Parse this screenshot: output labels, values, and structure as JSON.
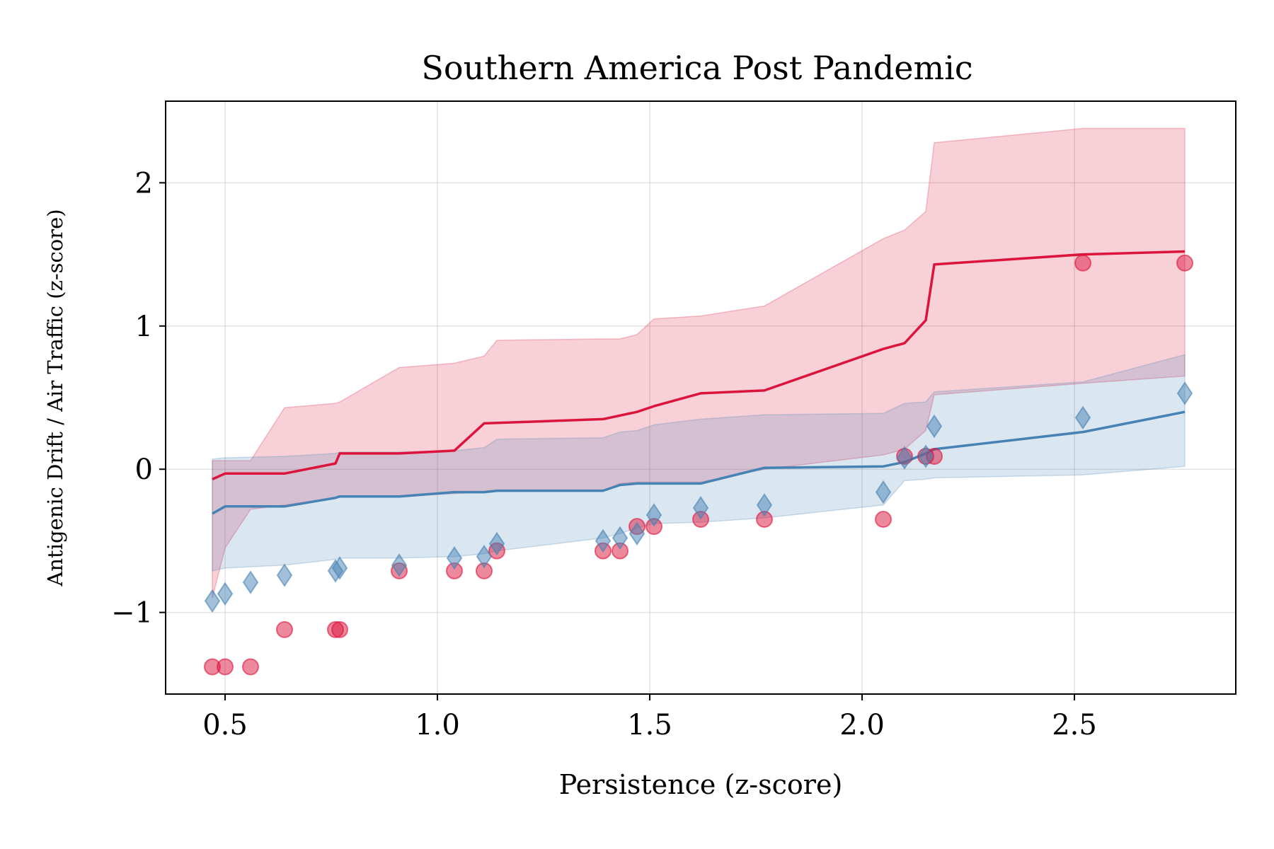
{
  "chart_data": {
    "type": "line",
    "title": "Southern America Post Pandemic",
    "xlabel": "Persistence (z-score)",
    "ylabel": "Antigenic Drift / Air Traffic (z-score)",
    "xlim": [
      0.36,
      2.88
    ],
    "ylim": [
      -1.57,
      2.57
    ],
    "xticks": [
      0.5,
      1.0,
      1.5,
      2.0,
      2.5
    ],
    "xtick_labels": [
      "0.5",
      "1.0",
      "1.5",
      "2.0",
      "2.5"
    ],
    "yticks": [
      -1,
      0,
      1,
      2
    ],
    "ytick_labels": [
      "−1",
      "0",
      "1",
      "2"
    ],
    "grid": true,
    "colors": {
      "red": "#dc143c",
      "blue": "#4682b4"
    },
    "series": [
      {
        "color": "#dc143c",
        "marker": "circle",
        "line": {
          "x": [
            0.47,
            0.5,
            0.64,
            0.76,
            0.77,
            0.91,
            1.04,
            1.11,
            1.39,
            1.47,
            1.51,
            1.62,
            1.77,
            2.05,
            2.1,
            2.15,
            2.17,
            2.52,
            2.76
          ],
          "y": [
            -0.07,
            -0.03,
            -0.03,
            0.04,
            0.11,
            0.11,
            0.13,
            0.32,
            0.35,
            0.4,
            0.44,
            0.53,
            0.55,
            0.84,
            0.88,
            1.04,
            1.43,
            1.5,
            1.52
          ]
        },
        "band": {
          "x": [
            0.47,
            0.5,
            0.56,
            0.64,
            0.76,
            0.77,
            0.91,
            1.04,
            1.11,
            1.14,
            1.39,
            1.43,
            1.47,
            1.51,
            1.62,
            1.77,
            2.05,
            2.1,
            2.15,
            2.17,
            2.52,
            2.76
          ],
          "lower": [
            -0.9,
            -0.55,
            -0.28,
            -0.25,
            -0.2,
            -0.19,
            -0.19,
            -0.17,
            -0.16,
            -0.15,
            -0.15,
            -0.1,
            -0.09,
            -0.09,
            -0.09,
            0.0,
            0.1,
            0.14,
            0.27,
            0.52,
            0.6,
            0.65
          ],
          "upper": [
            0.06,
            0.06,
            0.06,
            0.43,
            0.46,
            0.47,
            0.71,
            0.74,
            0.79,
            0.9,
            0.91,
            0.91,
            0.94,
            1.05,
            1.07,
            1.14,
            1.61,
            1.67,
            1.8,
            2.28,
            2.38,
            2.38
          ]
        },
        "points": {
          "x": [
            0.47,
            0.5,
            0.56,
            0.64,
            0.76,
            0.77,
            0.91,
            1.04,
            1.11,
            1.14,
            1.39,
            1.43,
            1.47,
            1.51,
            1.62,
            1.77,
            2.05,
            2.1,
            2.15,
            2.17,
            2.52,
            2.76
          ],
          "y": [
            -1.38,
            -1.38,
            -1.38,
            -1.12,
            -1.12,
            -1.12,
            -0.71,
            -0.71,
            -0.71,
            -0.57,
            -0.57,
            -0.57,
            -0.4,
            -0.4,
            -0.35,
            -0.35,
            -0.35,
            0.09,
            0.09,
            0.09,
            1.44,
            1.44
          ]
        }
      },
      {
        "color": "#4682b4",
        "marker": "diamond",
        "line": {
          "x": [
            0.47,
            0.5,
            0.64,
            0.76,
            0.77,
            0.91,
            1.04,
            1.11,
            1.14,
            1.39,
            1.43,
            1.47,
            1.62,
            1.77,
            2.05,
            2.1,
            2.15,
            2.17,
            2.52,
            2.76
          ],
          "y": [
            -0.31,
            -0.26,
            -0.26,
            -0.2,
            -0.19,
            -0.19,
            -0.16,
            -0.16,
            -0.15,
            -0.15,
            -0.11,
            -0.1,
            -0.1,
            0.01,
            0.02,
            0.05,
            0.11,
            0.14,
            0.26,
            0.4
          ]
        },
        "band": {
          "x": [
            0.47,
            0.5,
            0.64,
            0.76,
            0.77,
            0.91,
            1.04,
            1.11,
            1.14,
            1.39,
            1.43,
            1.47,
            1.51,
            1.62,
            1.77,
            2.05,
            2.1,
            2.15,
            2.17,
            2.52,
            2.76
          ],
          "lower": [
            -0.71,
            -0.69,
            -0.67,
            -0.63,
            -0.62,
            -0.62,
            -0.61,
            -0.59,
            -0.57,
            -0.48,
            -0.45,
            -0.41,
            -0.38,
            -0.37,
            -0.34,
            -0.25,
            -0.08,
            -0.07,
            -0.06,
            -0.04,
            0.02
          ],
          "upper": [
            0.07,
            0.08,
            0.09,
            0.11,
            0.12,
            0.12,
            0.13,
            0.15,
            0.21,
            0.22,
            0.26,
            0.27,
            0.31,
            0.35,
            0.38,
            0.39,
            0.46,
            0.47,
            0.54,
            0.61,
            0.8
          ]
        },
        "points": {
          "x": [
            0.47,
            0.5,
            0.56,
            0.64,
            0.76,
            0.77,
            0.91,
            1.04,
            1.11,
            1.14,
            1.39,
            1.43,
            1.47,
            1.51,
            1.62,
            1.77,
            2.05,
            2.1,
            2.15,
            2.17,
            2.52,
            2.76
          ],
          "y": [
            -0.92,
            -0.87,
            -0.79,
            -0.74,
            -0.71,
            -0.69,
            -0.67,
            -0.62,
            -0.61,
            -0.52,
            -0.5,
            -0.48,
            -0.45,
            -0.32,
            -0.27,
            -0.25,
            -0.16,
            0.08,
            0.09,
            0.3,
            0.36,
            0.53
          ]
        }
      }
    ]
  }
}
